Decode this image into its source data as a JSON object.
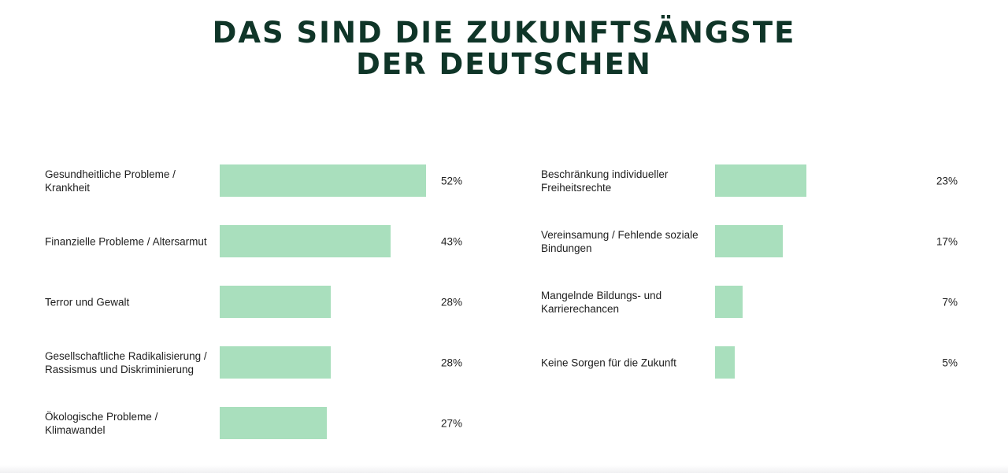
{
  "title": {
    "line1": "DAS SIND DIE ZUKUNFTSÄNGSTE",
    "line2": "DER DEUTSCHEN"
  },
  "colors": {
    "title": "#0f3528",
    "bar": "#a9dfbd",
    "text": "#1e1e1e"
  },
  "chart_data": {
    "type": "bar",
    "orientation": "horizontal",
    "unit": "%",
    "xlim": [
      0,
      100
    ],
    "grid": false,
    "columns": [
      {
        "items": [
          {
            "label": "Gesundheitliche Probleme / Krankheit",
            "value": 52,
            "value_label": "52%"
          },
          {
            "label": "Finanzielle Probleme / Altersarmut",
            "value": 43,
            "value_label": "43%"
          },
          {
            "label": "Terror und Gewalt",
            "value": 28,
            "value_label": "28%"
          },
          {
            "label": "Gesellschaftliche Radikalisierung / Rassismus und Diskriminierung",
            "value": 28,
            "value_label": "28%"
          },
          {
            "label": "Ökologische Probleme / Klimawandel",
            "value": 27,
            "value_label": "27%"
          }
        ]
      },
      {
        "items": [
          {
            "label": "Beschränkung individueller Freiheitsrechte",
            "value": 23,
            "value_label": "23%"
          },
          {
            "label": "Vereinsamung / Fehlende soziale Bindungen",
            "value": 17,
            "value_label": "17%"
          },
          {
            "label": "Mangelnde Bildungs- und Karrierechancen",
            "value": 7,
            "value_label": "7%"
          },
          {
            "label": "Keine Sorgen für die Zukunft",
            "value": 5,
            "value_label": "5%"
          }
        ]
      }
    ]
  }
}
